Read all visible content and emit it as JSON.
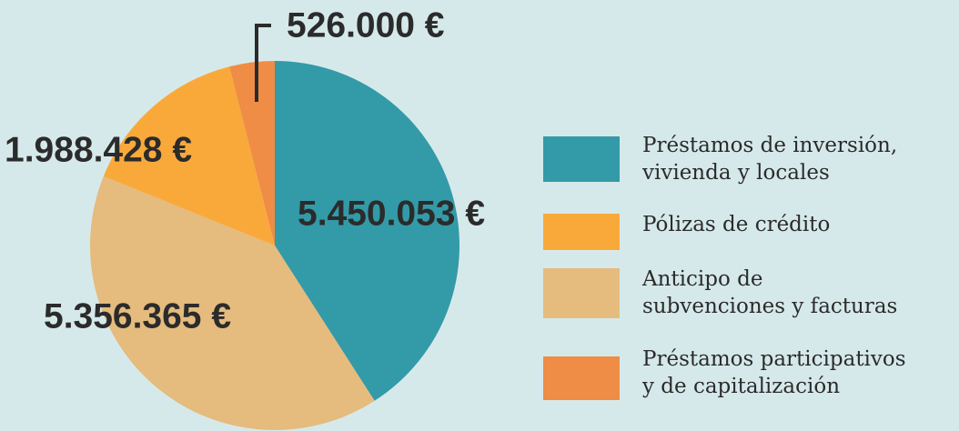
{
  "chart_data": {
    "type": "pie",
    "series": [
      {
        "name": "Préstamos de inversión,\nvivienda y locales",
        "color": "#339aa8",
        "values": [
          5450053
        ],
        "value_labels": [
          "5.450.053 €"
        ]
      },
      {
        "name": "Pólizas de crédito",
        "color": "#f9a93a",
        "values": [
          1988428
        ],
        "value_labels": [
          "1.988.428 €"
        ]
      },
      {
        "name": "Anticipo de\nsubvenciones y facturas",
        "color": "#e5bb7e",
        "values": [
          5356365
        ],
        "value_labels": [
          "5.356.365 €"
        ]
      },
      {
        "name": "Préstamos participativos\ny de capitalización",
        "color": "#ef8c45",
        "values": [
          526000
        ],
        "value_labels": [
          "526.000 €"
        ]
      }
    ],
    "legend": "right"
  }
}
